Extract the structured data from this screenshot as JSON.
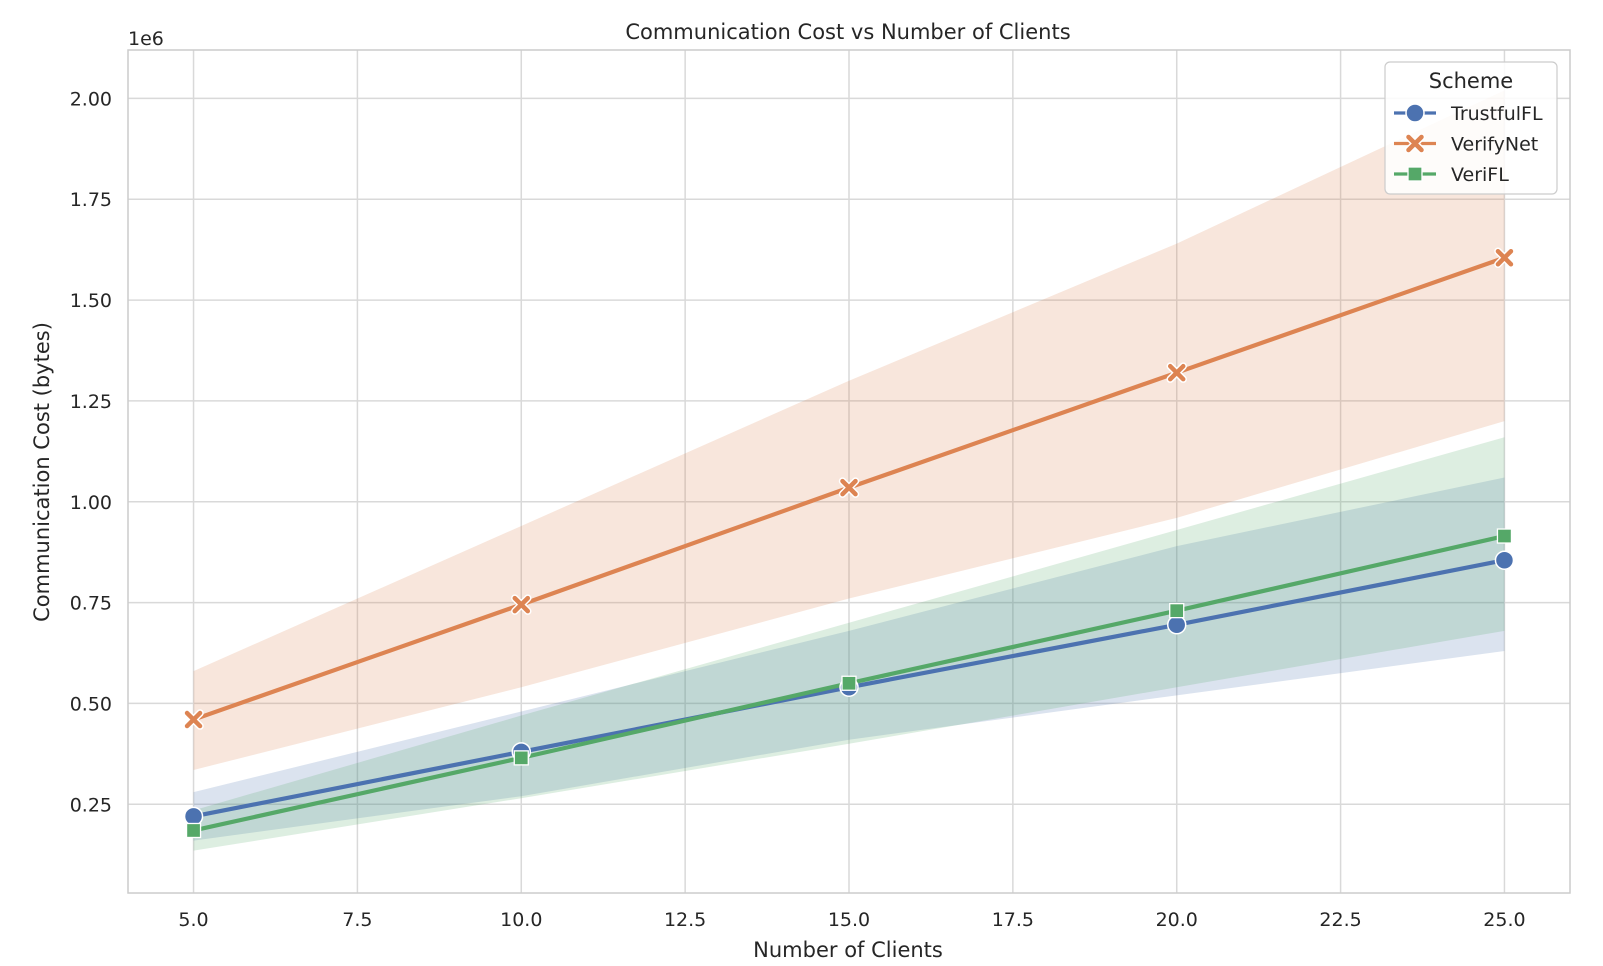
{
  "chart_data": {
    "type": "line",
    "title": "Communication Cost vs Number of Clients",
    "xlabel": "Number of Clients",
    "ylabel": "Communication Cost (bytes)",
    "y_offset_label": "1e6",
    "xlim": [
      4.0,
      26.0
    ],
    "ylim": [
      0.03,
      2.12
    ],
    "x_ticks": [
      5.0,
      7.5,
      10.0,
      12.5,
      15.0,
      17.5,
      20.0,
      22.5,
      25.0
    ],
    "x_tick_labels": [
      "5.0",
      "7.5",
      "10.0",
      "12.5",
      "15.0",
      "17.5",
      "20.0",
      "22.5",
      "25.0"
    ],
    "y_ticks": [
      0.25,
      0.5,
      0.75,
      1.0,
      1.25,
      1.5,
      1.75,
      2.0
    ],
    "y_tick_labels": [
      "0.25",
      "0.50",
      "0.75",
      "1.00",
      "1.25",
      "1.50",
      "1.75",
      "2.00"
    ],
    "grid": true,
    "legend_title": "Scheme",
    "legend_position": "top-right",
    "x": [
      5,
      10,
      15,
      20,
      25
    ],
    "series": [
      {
        "name": "TrustfulFL",
        "color": "#4c72b0",
        "marker": "circle",
        "values": [
          0.22,
          0.38,
          0.54,
          0.695,
          0.855
        ],
        "ci_lower": [
          0.16,
          0.27,
          0.41,
          0.52,
          0.63
        ],
        "ci_upper": [
          0.28,
          0.48,
          0.68,
          0.89,
          1.06
        ]
      },
      {
        "name": "VerifyNet",
        "color": "#dd8452",
        "marker": "x",
        "values": [
          0.46,
          0.745,
          1.035,
          1.32,
          1.605
        ],
        "ci_lower": [
          0.335,
          0.54,
          0.76,
          0.96,
          1.2
        ],
        "ci_upper": [
          0.58,
          0.94,
          1.3,
          1.64,
          2.02
        ]
      },
      {
        "name": "VeriFL",
        "color": "#55a868",
        "marker": "square",
        "values": [
          0.185,
          0.365,
          0.55,
          0.73,
          0.915
        ],
        "ci_lower": [
          0.135,
          0.265,
          0.4,
          0.54,
          0.68
        ],
        "ci_upper": [
          0.235,
          0.47,
          0.7,
          0.93,
          1.16
        ]
      }
    ]
  }
}
